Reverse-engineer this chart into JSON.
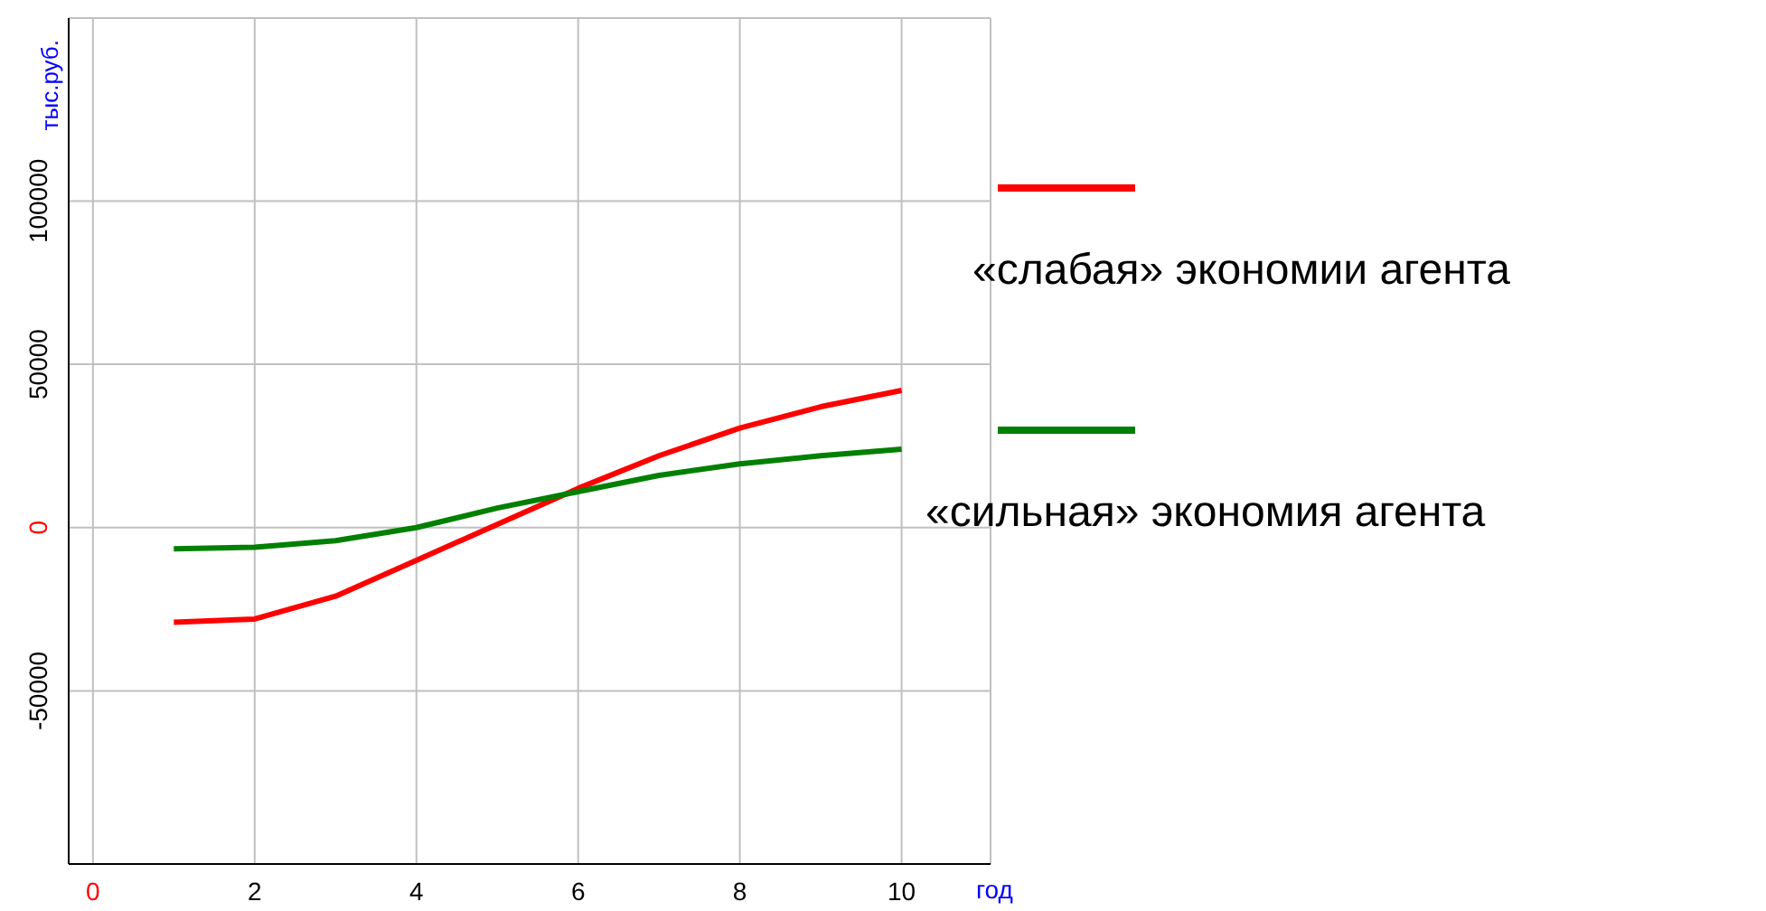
{
  "chart_data": {
    "type": "line",
    "xlabel": "год",
    "ylabel": "тыс.руб.",
    "x": [
      1,
      2,
      3,
      4,
      5,
      6,
      7,
      8,
      9,
      10
    ],
    "series": [
      {
        "name": "«слабая» экономии агента",
        "color": "#ff0000",
        "values": [
          -29000,
          -28000,
          -21000,
          -10000,
          1000,
          12000,
          22000,
          30500,
          37000,
          42000
        ]
      },
      {
        "name": "«сильная» экономия агента",
        "color": "#008000",
        "values": [
          -6500,
          -6000,
          -4000,
          0,
          6000,
          11000,
          16000,
          19500,
          22000,
          24000
        ]
      }
    ],
    "xlim": [
      -0.3,
      11.1
    ],
    "xticks": [
      0,
      2,
      4,
      6,
      8,
      10
    ],
    "ylim": [
      -103000,
      156000
    ],
    "yticks": [
      -50000,
      0,
      50000,
      100000
    ],
    "grid": true,
    "legend": "right",
    "marker": "none",
    "line_style": "solid"
  }
}
